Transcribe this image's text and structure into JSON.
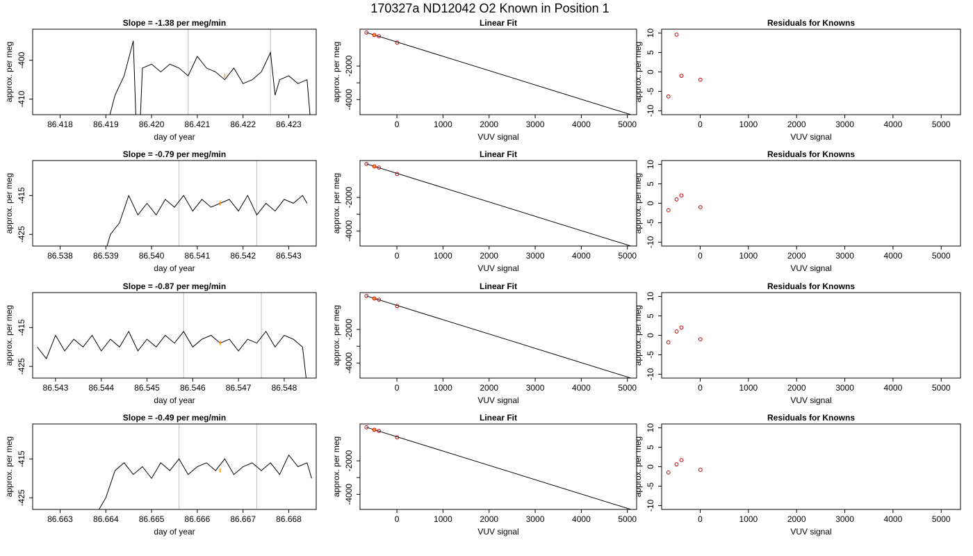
{
  "page_title": "170327a     ND12042   O2 Known in Position  1",
  "chart_data": [
    {
      "type": "line",
      "row": 0,
      "title": "Slope =  -1.38  per meg/min",
      "xlabel": "day of year",
      "ylabel": "approx. per meg",
      "xlim": [
        86.4174,
        86.4236
      ],
      "ylim": [
        -414,
        -392
      ],
      "xticks": [
        86.418,
        86.419,
        86.42,
        86.421,
        86.422,
        86.423
      ],
      "xtick_labels": [
        "86.418",
        "86.419",
        "86.420",
        "86.421",
        "86.422",
        "86.423"
      ],
      "yticks": [
        -410,
        -400
      ],
      "ytick_labels": [
        "-410",
        "-400"
      ],
      "vlines": [
        86.4208,
        86.4226
      ],
      "marker": {
        "x": 86.4216,
        "y": -404
      },
      "x": [
        86.419,
        86.4192,
        86.4194,
        86.4196,
        86.4197,
        86.4198,
        86.42,
        86.4202,
        86.4204,
        86.4206,
        86.4208,
        86.421,
        86.4212,
        86.4214,
        86.4216,
        86.4218,
        86.422,
        86.4222,
        86.4224,
        86.4226,
        86.4227,
        86.4228,
        86.423,
        86.4232,
        86.4234,
        86.4235
      ],
      "y": [
        -418,
        -409,
        -404,
        -395,
        -430,
        -402,
        -401,
        -403,
        -401,
        -402,
        -404,
        -399,
        -402,
        -403,
        -405,
        -402,
        -406,
        -405,
        -403,
        -398,
        -409,
        -405,
        -404,
        -406,
        -405,
        -419
      ]
    },
    {
      "type": "scatter",
      "row": 0,
      "title": "Linear Fit",
      "xlabel": "VUV signal",
      "ylabel": "approx. per meg",
      "xlim": [
        -800,
        5200
      ],
      "ylim": [
        -4900,
        200
      ],
      "xticks": [
        0,
        1000,
        2000,
        3000,
        4000,
        5000
      ],
      "xtick_labels": [
        "0",
        "1000",
        "2000",
        "3000",
        "4000",
        "5000"
      ],
      "yticks": [
        -4000,
        -3000,
        -2000
      ],
      "ytick_labels": [
        "-4000",
        "",
        "-2000"
      ],
      "points": [
        [
          -660,
          0
        ],
        [
          -490,
          -150
        ],
        [
          -390,
          -220
        ],
        [
          5,
          -600
        ]
      ],
      "fit": [
        [
          -660,
          0
        ],
        [
          5100,
          -4920
        ]
      ],
      "highlight": [
        -490,
        -150
      ]
    },
    {
      "type": "scatter",
      "row": 0,
      "title": "Residuals for Knowns",
      "xlabel": "VUV signal",
      "ylabel": "approx. per meg",
      "xlim": [
        -800,
        5400
      ],
      "ylim": [
        -11,
        11
      ],
      "xticks": [
        0,
        1000,
        2000,
        3000,
        4000,
        5000
      ],
      "xtick_labels": [
        "0",
        "1000",
        "2000",
        "3000",
        "4000",
        "5000"
      ],
      "yticks": [
        -10,
        -5,
        0,
        5,
        10
      ],
      "ytick_labels": [
        "-10",
        "-5",
        "0",
        "5",
        "10"
      ],
      "points": [
        [
          -660,
          -6.3
        ],
        [
          -490,
          9.6
        ],
        [
          -390,
          -1
        ],
        [
          5,
          -2
        ]
      ]
    },
    {
      "type": "line",
      "row": 1,
      "title": "Slope =  -0.79  per meg/min",
      "xlabel": "day of year",
      "ylabel": "approx. per meg",
      "xlim": [
        86.5374,
        86.5436
      ],
      "ylim": [
        -428,
        -406
      ],
      "xticks": [
        86.538,
        86.539,
        86.54,
        86.541,
        86.542,
        86.543
      ],
      "xtick_labels": [
        "86.538",
        "86.539",
        "86.540",
        "86.541",
        "86.542",
        "86.543"
      ],
      "yticks": [
        -425,
        -415
      ],
      "ytick_labels": [
        "-425",
        "-415"
      ],
      "vlines": [
        86.5406,
        86.5423
      ],
      "marker": {
        "x": 86.5415,
        "y": -417
      },
      "x": [
        86.539,
        86.5391,
        86.5393,
        86.5395,
        86.5397,
        86.5399,
        86.5401,
        86.5403,
        86.5405,
        86.5407,
        86.5409,
        86.5411,
        86.5413,
        86.5415,
        86.5417,
        86.5419,
        86.5421,
        86.5423,
        86.5425,
        86.5427,
        86.5429,
        86.5431,
        86.5433,
        86.5434
      ],
      "y": [
        -429,
        -425,
        -422,
        -415,
        -420,
        -417,
        -420,
        -416,
        -418,
        -415,
        -419,
        -416,
        -418,
        -417,
        -416,
        -419,
        -415,
        -420,
        -417,
        -419,
        -416,
        -417,
        -415,
        -417
      ]
    },
    {
      "type": "scatter",
      "row": 1,
      "title": "Linear Fit",
      "xlabel": "VUV signal",
      "ylabel": "approx. per meg",
      "xlim": [
        -800,
        5200
      ],
      "ylim": [
        -4900,
        200
      ],
      "xticks": [
        0,
        1000,
        2000,
        3000,
        4000,
        5000
      ],
      "xtick_labels": [
        "0",
        "1000",
        "2000",
        "3000",
        "4000",
        "5000"
      ],
      "yticks": [
        -4000,
        -3000,
        -2000
      ],
      "ytick_labels": [
        "-4000",
        "",
        "-2000"
      ],
      "points": [
        [
          -660,
          0
        ],
        [
          -490,
          -150
        ],
        [
          -390,
          -220
        ],
        [
          5,
          -600
        ]
      ],
      "fit": [
        [
          -660,
          0
        ],
        [
          5100,
          -4920
        ]
      ],
      "highlight": [
        -490,
        -150
      ]
    },
    {
      "type": "scatter",
      "row": 1,
      "title": "Residuals for Knowns",
      "xlabel": "VUV signal",
      "ylabel": "approx. per meg",
      "xlim": [
        -800,
        5400
      ],
      "ylim": [
        -11,
        11
      ],
      "xticks": [
        0,
        1000,
        2000,
        3000,
        4000,
        5000
      ],
      "xtick_labels": [
        "0",
        "1000",
        "2000",
        "3000",
        "4000",
        "5000"
      ],
      "yticks": [
        -10,
        -5,
        0,
        5,
        10
      ],
      "ytick_labels": [
        "-10",
        "-5",
        "0",
        "5",
        "10"
      ],
      "points": [
        [
          -660,
          -1.8
        ],
        [
          -490,
          1
        ],
        [
          -390,
          2
        ],
        [
          5,
          -1
        ]
      ]
    },
    {
      "type": "line",
      "row": 2,
      "title": "Slope =  -0.87  per meg/min",
      "xlabel": "day of year",
      "ylabel": "approx. per meg",
      "xlim": [
        86.5425,
        86.5487
      ],
      "ylim": [
        -428,
        -406
      ],
      "xticks": [
        86.543,
        86.544,
        86.545,
        86.546,
        86.547,
        86.548
      ],
      "xtick_labels": [
        "86.543",
        "86.544",
        "86.545",
        "86.546",
        "86.547",
        "86.548"
      ],
      "yticks": [
        -425,
        -415
      ],
      "ytick_labels": [
        "-425",
        "-415"
      ],
      "vlines": [
        86.5458,
        86.5475
      ],
      "marker": {
        "x": 86.5466,
        "y": -419
      },
      "x": [
        86.5426,
        86.5428,
        86.543,
        86.5432,
        86.5434,
        86.5436,
        86.5438,
        86.544,
        86.5442,
        86.5444,
        86.5446,
        86.5448,
        86.545,
        86.5452,
        86.5454,
        86.5456,
        86.5458,
        86.546,
        86.5462,
        86.5464,
        86.5466,
        86.5468,
        86.547,
        86.5472,
        86.5474,
        86.5476,
        86.5478,
        86.548,
        86.5482,
        86.5484,
        86.5485
      ],
      "y": [
        -420,
        -423,
        -417,
        -421,
        -418,
        -420,
        -417,
        -421,
        -418,
        -420,
        -416,
        -421,
        -418,
        -420,
        -417,
        -419,
        -416,
        -420,
        -418,
        -417,
        -419,
        -418,
        -421,
        -418,
        -419,
        -416,
        -420,
        -417,
        -418,
        -420,
        -430
      ]
    },
    {
      "type": "scatter",
      "row": 2,
      "title": "Linear Fit",
      "xlabel": "VUV signal",
      "ylabel": "approx. per meg",
      "xlim": [
        -800,
        5200
      ],
      "ylim": [
        -4900,
        200
      ],
      "xticks": [
        0,
        1000,
        2000,
        3000,
        4000,
        5000
      ],
      "xtick_labels": [
        "0",
        "1000",
        "2000",
        "3000",
        "4000",
        "5000"
      ],
      "yticks": [
        -4000,
        -3000,
        -2000
      ],
      "ytick_labels": [
        "-4000",
        "",
        "-2000"
      ],
      "points": [
        [
          -660,
          0
        ],
        [
          -490,
          -150
        ],
        [
          -390,
          -220
        ],
        [
          5,
          -600
        ]
      ],
      "fit": [
        [
          -660,
          0
        ],
        [
          5100,
          -4920
        ]
      ],
      "highlight": [
        -490,
        -150
      ]
    },
    {
      "type": "scatter",
      "row": 2,
      "title": "Residuals for Knowns",
      "xlabel": "VUV signal",
      "ylabel": "approx. per meg",
      "xlim": [
        -800,
        5400
      ],
      "ylim": [
        -11,
        11
      ],
      "xticks": [
        0,
        1000,
        2000,
        3000,
        4000,
        5000
      ],
      "xtick_labels": [
        "0",
        "1000",
        "2000",
        "3000",
        "4000",
        "5000"
      ],
      "yticks": [
        -10,
        -5,
        0,
        5,
        10
      ],
      "ytick_labels": [
        "-10",
        "-5",
        "0",
        "5",
        "10"
      ],
      "points": [
        [
          -660,
          -1.8
        ],
        [
          -490,
          1
        ],
        [
          -390,
          2
        ],
        [
          5,
          -1
        ]
      ]
    },
    {
      "type": "line",
      "row": 3,
      "title": "Slope =  -0.49  per meg/min",
      "xlabel": "day of year",
      "ylabel": "approx. per meg",
      "xlim": [
        86.6624,
        86.6686
      ],
      "ylim": [
        -428,
        -406
      ],
      "xticks": [
        86.663,
        86.664,
        86.665,
        86.666,
        86.667,
        86.668
      ],
      "xtick_labels": [
        "86.663",
        "86.664",
        "86.665",
        "86.666",
        "86.667",
        "86.668"
      ],
      "yticks": [
        -425,
        -415
      ],
      "ytick_labels": [
        "-425",
        "-415"
      ],
      "vlines": [
        86.6656,
        86.6673
      ],
      "marker": {
        "x": 86.6665,
        "y": -418
      },
      "x": [
        86.6638,
        86.664,
        86.6642,
        86.6644,
        86.6646,
        86.6648,
        86.665,
        86.6652,
        86.6654,
        86.6656,
        86.6658,
        86.666,
        86.6662,
        86.6664,
        86.6666,
        86.6668,
        86.667,
        86.6672,
        86.6674,
        86.6676,
        86.6678,
        86.668,
        86.6682,
        86.6684,
        86.6685
      ],
      "y": [
        -429,
        -425,
        -418,
        -416,
        -419,
        -417,
        -420,
        -416,
        -418,
        -415,
        -419,
        -417,
        -416,
        -418,
        -415,
        -419,
        -417,
        -416,
        -418,
        -416,
        -419,
        -414,
        -417,
        -416,
        -420
      ]
    },
    {
      "type": "scatter",
      "row": 3,
      "title": "Linear Fit",
      "xlabel": "VUV signal",
      "ylabel": "approx. per meg",
      "xlim": [
        -800,
        5200
      ],
      "ylim": [
        -4900,
        200
      ],
      "xticks": [
        0,
        1000,
        2000,
        3000,
        4000,
        5000
      ],
      "xtick_labels": [
        "0",
        "1000",
        "2000",
        "3000",
        "4000",
        "5000"
      ],
      "yticks": [
        -4000,
        -3000,
        -2000
      ],
      "ytick_labels": [
        "-4000",
        "",
        "-2000"
      ],
      "points": [
        [
          -660,
          0
        ],
        [
          -490,
          -150
        ],
        [
          -390,
          -220
        ],
        [
          5,
          -600
        ]
      ],
      "fit": [
        [
          -660,
          0
        ],
        [
          5100,
          -4920
        ]
      ],
      "highlight": [
        -490,
        -150
      ]
    },
    {
      "type": "scatter",
      "row": 3,
      "title": "Residuals for Knowns",
      "xlabel": "VUV signal",
      "ylabel": "approx. per meg",
      "xlim": [
        -800,
        5400
      ],
      "ylim": [
        -11,
        11
      ],
      "xticks": [
        0,
        1000,
        2000,
        3000,
        4000,
        5000
      ],
      "xtick_labels": [
        "0",
        "1000",
        "2000",
        "3000",
        "4000",
        "5000"
      ],
      "yticks": [
        -10,
        -5,
        0,
        5,
        10
      ],
      "ytick_labels": [
        "-10",
        "-5",
        "0",
        "5",
        "10"
      ],
      "points": [
        [
          -660,
          -1.5
        ],
        [
          -490,
          0.6
        ],
        [
          -390,
          1.7
        ],
        [
          5,
          -0.8
        ]
      ]
    }
  ],
  "colors": {
    "line": "#000000",
    "vline": "#c8c8c8",
    "marker": "#ff9900",
    "residual": "#cc0000",
    "highlight": "#ff9900"
  }
}
